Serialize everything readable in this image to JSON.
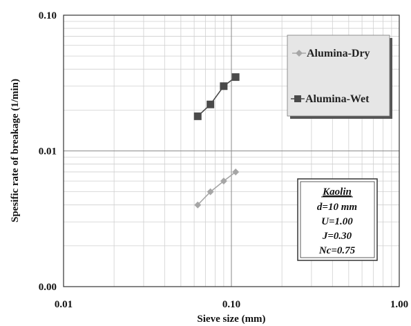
{
  "chart_data": {
    "type": "line",
    "xlabel": "Sieve  size (mm)",
    "ylabel": "Spesific rate of  breakage  (1/min)",
    "x_scale": "log",
    "y_scale": "log",
    "xlim": [
      0.01,
      1.0
    ],
    "ylim": [
      0.001,
      0.1
    ],
    "x_ticks": [
      {
        "value": 0.01,
        "label": "0.01"
      },
      {
        "value": 0.1,
        "label": "0.10"
      },
      {
        "value": 1.0,
        "label": "1.00"
      }
    ],
    "y_ticks": [
      {
        "value": 0.001,
        "label": "0.00"
      },
      {
        "value": 0.01,
        "label": "0.01"
      },
      {
        "value": 0.1,
        "label": "0.10"
      }
    ],
    "grid": true,
    "legend_position": "top-right",
    "series": [
      {
        "name": "Alumina-Dry",
        "color": "#a6a6a6",
        "marker": "diamond",
        "x": [
          0.063,
          0.075,
          0.09,
          0.106
        ],
        "y": [
          0.004,
          0.005,
          0.006,
          0.007
        ]
      },
      {
        "name": "Alumina-Wet",
        "color": "#4a4a4a",
        "marker": "square",
        "x": [
          0.063,
          0.075,
          0.09,
          0.106
        ],
        "y": [
          0.018,
          0.022,
          0.03,
          0.035
        ]
      }
    ],
    "annotation": {
      "title": "Kaolin",
      "lines": [
        "d=10 mm",
        "U=1.00",
        "J=0.30",
        "Nc=0.75"
      ]
    }
  }
}
